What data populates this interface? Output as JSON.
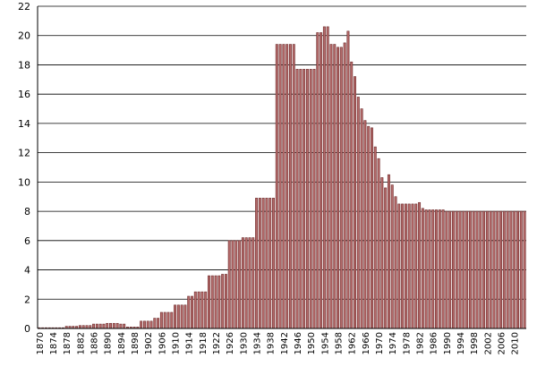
{
  "chart_data": {
    "type": "bar",
    "title": "",
    "xlabel": "",
    "ylabel": "",
    "ylim": [
      0,
      22
    ],
    "yticks": [
      "0",
      "2",
      "4",
      "6",
      "8",
      "10",
      "12",
      "14",
      "16",
      "18",
      "20",
      "22"
    ],
    "grid": true,
    "x_tick_labels": [
      "1870",
      "1874",
      "1878",
      "1882",
      "1886",
      "1890",
      "1894",
      "1898",
      "1902",
      "1906",
      "1910",
      "1914",
      "1918",
      "1922",
      "1926",
      "1930",
      "1934",
      "1938",
      "1942",
      "1946",
      "1950",
      "1954",
      "1958",
      "1962",
      "1966",
      "1970",
      "1974",
      "1978",
      "1982",
      "1986",
      "1990",
      "1994",
      "1998",
      "2002",
      "2006",
      "2010"
    ],
    "colors": {
      "bar_fill": "#b46a6a",
      "bar_stroke": "#6e2c2c",
      "grid": "#000000"
    },
    "x": [
      1870,
      1871,
      1872,
      1873,
      1874,
      1875,
      1876,
      1877,
      1878,
      1879,
      1880,
      1881,
      1882,
      1883,
      1884,
      1885,
      1886,
      1887,
      1888,
      1889,
      1890,
      1891,
      1892,
      1893,
      1894,
      1895,
      1896,
      1897,
      1898,
      1899,
      1900,
      1901,
      1902,
      1903,
      1904,
      1905,
      1906,
      1907,
      1908,
      1909,
      1910,
      1911,
      1912,
      1913,
      1914,
      1915,
      1916,
      1917,
      1918,
      1919,
      1920,
      1921,
      1922,
      1923,
      1924,
      1925,
      1926,
      1927,
      1928,
      1929,
      1930,
      1931,
      1932,
      1933,
      1934,
      1935,
      1936,
      1937,
      1938,
      1939,
      1940,
      1941,
      1942,
      1943,
      1944,
      1945,
      1946,
      1947,
      1948,
      1949,
      1950,
      1951,
      1952,
      1953,
      1954,
      1955,
      1956,
      1957,
      1958,
      1959,
      1960,
      1961,
      1962,
      1963,
      1964,
      1965,
      1966,
      1967,
      1968,
      1969,
      1970,
      1971,
      1972,
      1973,
      1974,
      1975,
      1976,
      1977,
      1978,
      1979,
      1980,
      1981,
      1982,
      1983,
      1984,
      1985,
      1986,
      1987,
      1988,
      1989,
      1990,
      1991,
      1992,
      1993,
      1994,
      1995,
      1996,
      1997,
      1998,
      1999,
      2000,
      2001,
      2002,
      2003,
      2004,
      2005,
      2006,
      2007,
      2008,
      2009,
      2010,
      2011,
      2012,
      2013
    ],
    "values": [
      0.05,
      0.05,
      0.05,
      0.05,
      0.05,
      0.05,
      0.05,
      0.05,
      0.15,
      0.15,
      0.15,
      0.15,
      0.2,
      0.2,
      0.2,
      0.2,
      0.3,
      0.3,
      0.3,
      0.3,
      0.35,
      0.35,
      0.35,
      0.35,
      0.3,
      0.3,
      0.1,
      0.1,
      0.1,
      0.1,
      0.5,
      0.5,
      0.5,
      0.5,
      0.7,
      0.7,
      1.1,
      1.1,
      1.1,
      1.1,
      1.6,
      1.6,
      1.6,
      1.6,
      2.2,
      2.2,
      2.5,
      2.5,
      2.5,
      2.5,
      3.6,
      3.6,
      3.6,
      3.6,
      3.7,
      3.7,
      6.0,
      6.0,
      6.0,
      6.0,
      6.2,
      6.2,
      6.2,
      6.2,
      8.9,
      8.9,
      8.9,
      8.9,
      8.9,
      8.9,
      19.4,
      19.4,
      19.4,
      19.4,
      19.4,
      19.4,
      17.7,
      17.7,
      17.7,
      17.7,
      17.7,
      17.7,
      20.2,
      20.2,
      20.6,
      20.6,
      19.4,
      19.4,
      19.2,
      19.2,
      19.5,
      20.3,
      18.2,
      17.2,
      15.8,
      15.0,
      14.2,
      13.8,
      13.7,
      12.4,
      11.6,
      10.3,
      9.6,
      10.5,
      9.8,
      9.0,
      8.5,
      8.5,
      8.5,
      8.5,
      8.5,
      8.5,
      8.6,
      8.2,
      8.1,
      8.1,
      8.1,
      8.1,
      8.1,
      8.1,
      8.0,
      8.0,
      8.0,
      8.0,
      8.0,
      8.0,
      8.0,
      8.0,
      8.0,
      8.0,
      8.0,
      8.0,
      8.0,
      8.0,
      8.0,
      8.0,
      8.0,
      8.0,
      8.0,
      8.0,
      8.0,
      8.0,
      8.0,
      8.0
    ]
  }
}
